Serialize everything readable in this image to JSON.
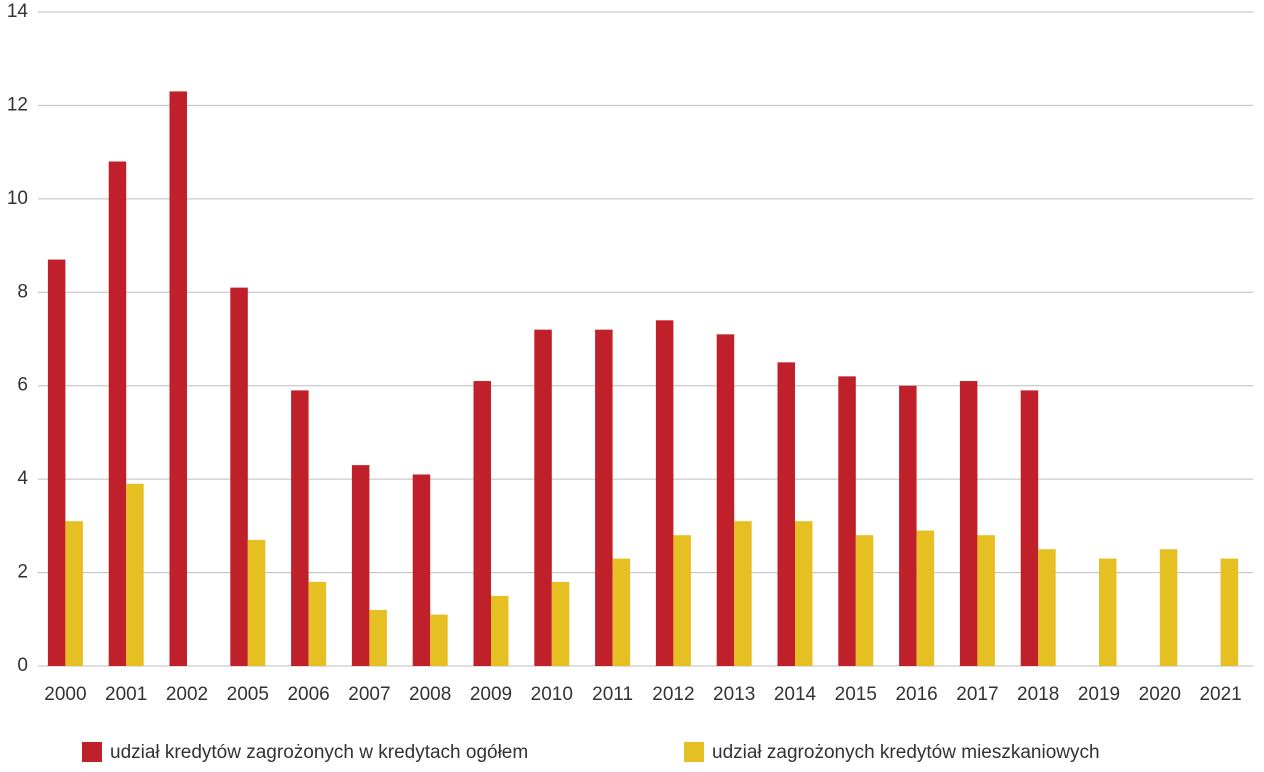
{
  "chart_data": {
    "type": "bar",
    "categories": [
      "2000",
      "2001",
      "2002",
      "2005",
      "2006",
      "2007",
      "2008",
      "2009",
      "2010",
      "2011",
      "2012",
      "2013",
      "2014",
      "2015",
      "2016",
      "2017",
      "2018",
      "2019",
      "2020",
      "2021"
    ],
    "series": [
      {
        "name": "udział kredytów zagrożonych w kredytach ogółem",
        "color": "#c0202a",
        "values": [
          8.7,
          10.8,
          12.3,
          8.1,
          5.9,
          4.3,
          4.1,
          6.1,
          7.2,
          7.2,
          7.4,
          7.1,
          6.5,
          6.2,
          6.0,
          6.1,
          5.9,
          null,
          null,
          null
        ]
      },
      {
        "name": "udział zagrożonych kredytów mieszkaniowych",
        "color": "#e6bf22",
        "values": [
          3.1,
          3.9,
          null,
          2.7,
          1.8,
          1.2,
          1.1,
          1.5,
          1.8,
          2.3,
          2.8,
          3.1,
          3.1,
          2.8,
          2.9,
          2.8,
          2.5,
          2.3,
          2.5,
          2.3
        ]
      }
    ],
    "ylim": [
      0,
      14
    ],
    "yticks": [
      0,
      2,
      4,
      6,
      8,
      10,
      12,
      14
    ],
    "grid": true,
    "legend": "bottom"
  }
}
